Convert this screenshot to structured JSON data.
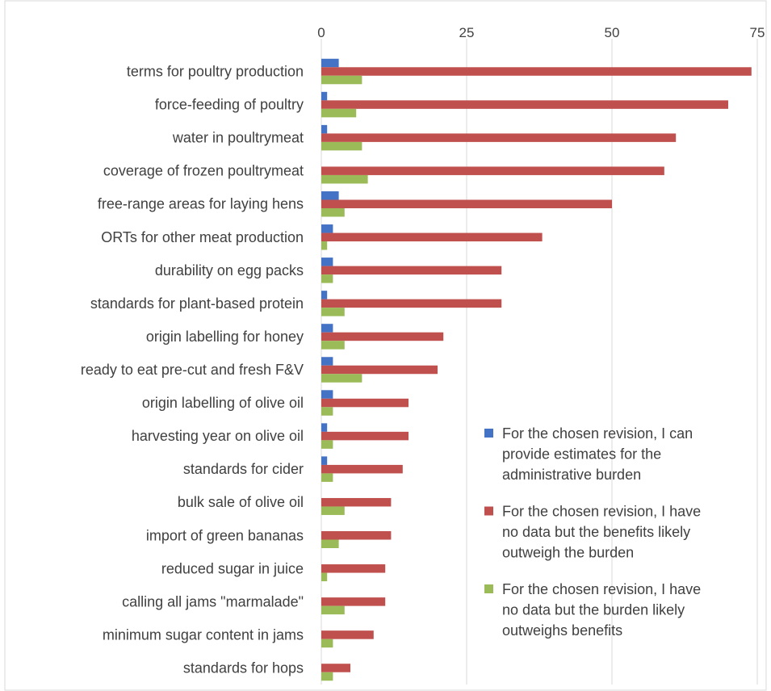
{
  "chart_data": {
    "type": "bar",
    "orientation": "horizontal",
    "categories": [
      "terms for poultry production",
      "force-feeding of poultry",
      "water in poultrymeat",
      "coverage of frozen poultrymeat",
      "free-range areas for laying hens",
      "ORTs for other meat production",
      "durability on egg packs",
      "standards for plant-based protein",
      "origin labelling for honey",
      "ready to eat pre-cut and fresh F&V",
      "origin labelling of olive oil",
      "harvesting year on olive oil",
      "standards for cider",
      "bulk sale of olive oil",
      "import of green bananas",
      "reduced sugar in juice",
      "calling all jams \"marmalade\"",
      "minimum sugar content in jams",
      "standards for hops"
    ],
    "series": [
      {
        "name": "For the chosen revision, I can provide estimates for the administrative burden",
        "legend_lines": [
          "For the chosen revision, I can",
          "provide estimates for the",
          "administrative burden"
        ],
        "color": "#4472C4",
        "values": [
          3,
          1,
          1,
          0,
          3,
          2,
          2,
          1,
          2,
          2,
          2,
          1,
          1,
          0,
          0,
          0,
          0,
          0,
          0
        ]
      },
      {
        "name": "For the chosen revision, I have no data but the benefits likely outweigh the burden",
        "legend_lines": [
          "For the chosen revision, I have",
          "no data but the benefits likely",
          "outweigh the burden"
        ],
        "color": "#C0504D",
        "values": [
          74,
          70,
          61,
          59,
          50,
          38,
          31,
          31,
          21,
          20,
          15,
          15,
          14,
          12,
          12,
          11,
          11,
          9,
          5
        ]
      },
      {
        "name": "For the chosen revision, I have no data but the burden likely outweighs benefits",
        "legend_lines": [
          "For the chosen revision, I have",
          "no data but the burden likely",
          "outweighs benefits"
        ],
        "color": "#9BBB59",
        "values": [
          7,
          6,
          7,
          8,
          4,
          1,
          2,
          4,
          4,
          7,
          2,
          2,
          2,
          4,
          3,
          1,
          4,
          2,
          2
        ]
      }
    ],
    "xlim": [
      0,
      75
    ],
    "xticks": [
      0,
      25,
      50,
      75
    ],
    "x_axis_position": "top",
    "grid": true,
    "legend_position": "bottom-right",
    "title": "",
    "xlabel": "",
    "ylabel": ""
  }
}
